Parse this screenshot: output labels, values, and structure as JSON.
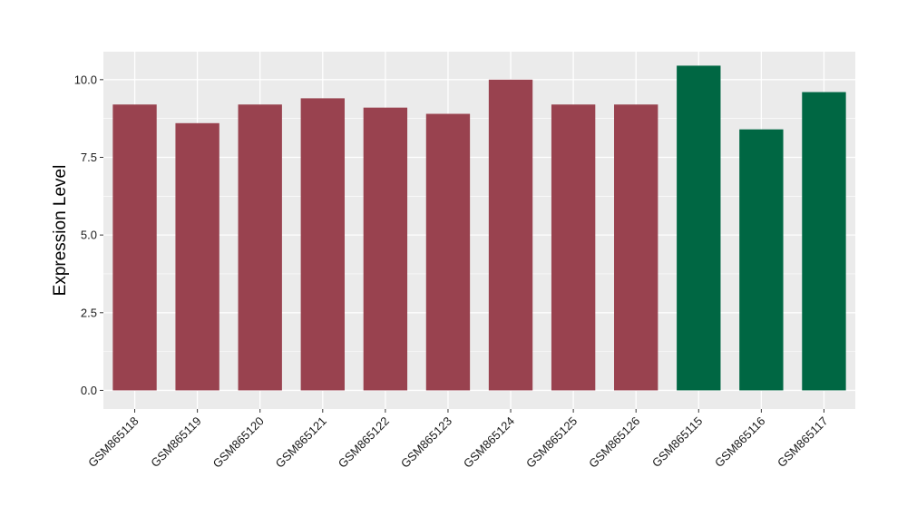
{
  "chart_data": {
    "type": "bar",
    "title": "",
    "xlabel": "",
    "ylabel": "Expression Level",
    "ylim": [
      -0.6,
      10.9
    ],
    "yticks": [
      0.0,
      2.5,
      5.0,
      7.5,
      10.0
    ],
    "ytick_labels": [
      "0.0",
      "2.5",
      "5.0",
      "7.5",
      "10.0"
    ],
    "grid": true,
    "legend": "none",
    "categories": [
      "GSM865118",
      "GSM865119",
      "GSM865120",
      "GSM865121",
      "GSM865122",
      "GSM865123",
      "GSM865124",
      "GSM865125",
      "GSM865126",
      "GSM865115",
      "GSM865116",
      "GSM865117"
    ],
    "values": [
      9.2,
      8.6,
      9.2,
      9.4,
      9.1,
      8.9,
      10.0,
      9.2,
      9.2,
      10.45,
      8.4,
      9.6
    ],
    "groups": [
      "1",
      "1",
      "1",
      "1",
      "1",
      "1",
      "1",
      "1",
      "1",
      "2",
      "2",
      "2"
    ],
    "colors": {
      "1": "#99424f",
      "2": "#006743"
    },
    "panel_background": "#ebebeb",
    "gridline_color": "#ffffff"
  }
}
